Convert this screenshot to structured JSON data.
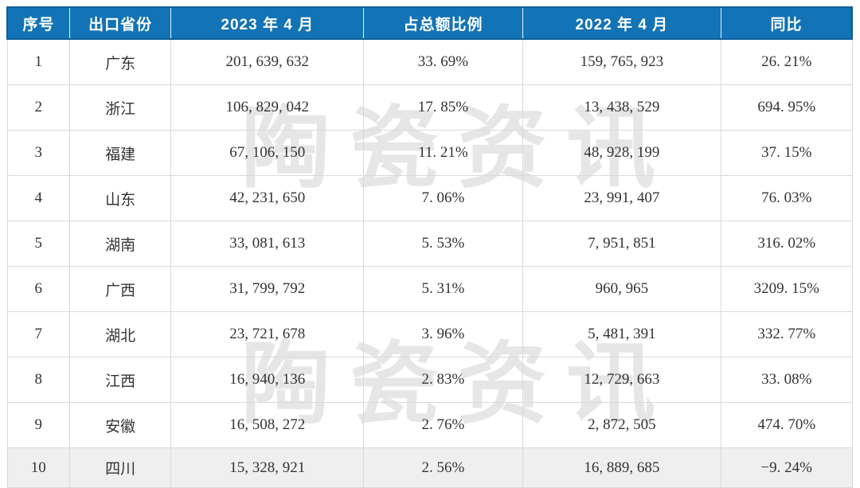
{
  "chart_data": {
    "type": "table",
    "title": "",
    "columns": [
      "序号",
      "出口省份",
      "2023 年 4 月",
      "占总额比例",
      "2022 年 4 月",
      "同比"
    ],
    "rows": [
      [
        "1",
        "广东",
        "201, 639, 632",
        "33. 69%",
        "159, 765, 923",
        "26. 21%"
      ],
      [
        "2",
        "浙江",
        "106, 829, 042",
        "17. 85%",
        "13, 438, 529",
        "694. 95%"
      ],
      [
        "3",
        "福建",
        "67, 106, 150",
        "11. 21%",
        "48, 928, 199",
        "37. 15%"
      ],
      [
        "4",
        "山东",
        "42, 231, 650",
        "7. 06%",
        "23, 991, 407",
        "76. 03%"
      ],
      [
        "5",
        "湖南",
        "33, 081, 613",
        "5. 53%",
        "7, 951, 851",
        "316. 02%"
      ],
      [
        "6",
        "广西",
        "31, 799, 792",
        "5. 31%",
        "960, 965",
        "3209. 15%"
      ],
      [
        "7",
        "湖北",
        "23, 721, 678",
        "3. 96%",
        "5, 481, 391",
        "332. 77%"
      ],
      [
        "8",
        "江西",
        "16, 940, 136",
        "2. 83%",
        "12, 729, 663",
        "33. 08%"
      ],
      [
        "9",
        "安徽",
        "16, 508, 272",
        "2. 76%",
        "2, 872, 505",
        "474. 70%"
      ],
      [
        "10",
        "四川",
        "15, 328, 921",
        "2. 56%",
        "16, 889, 685",
        "−9. 24%"
      ]
    ]
  },
  "watermark": {
    "text": "陶瓷资讯"
  },
  "colors": {
    "header_bg": "#1273b6",
    "header_border": "#0d5e99",
    "header_text": "#ffffff",
    "grid_line": "#d9d9d9",
    "last_row_bg": "#efefef",
    "body_text": "#333333"
  }
}
